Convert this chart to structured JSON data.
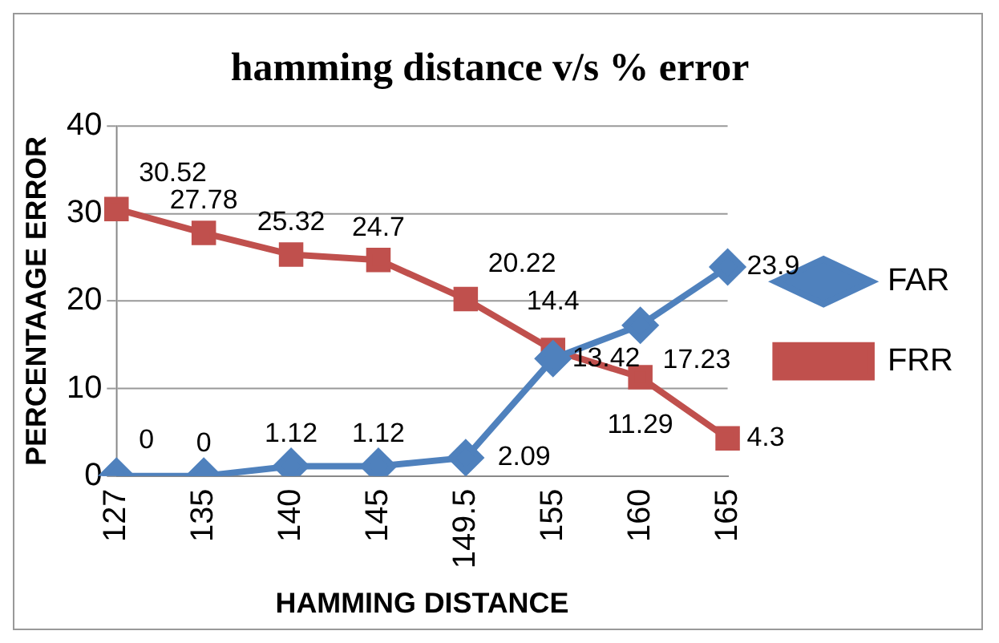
{
  "chart_data": {
    "type": "line",
    "title": "hamming distance v/s % error",
    "xlabel": "HAMMING DISTANCE",
    "ylabel": "PERCENTAAGE ERROR",
    "categories": [
      "127",
      "135",
      "140",
      "145",
      "149.5",
      "155",
      "160",
      "165"
    ],
    "series": [
      {
        "name": "FAR",
        "color": "#4f81bd",
        "marker": "diamond",
        "values": [
          0,
          0,
          1.12,
          1.12,
          2.09,
          13.42,
          17.23,
          23.9
        ]
      },
      {
        "name": "FRR",
        "color": "#c0504d",
        "marker": "square",
        "values": [
          30.52,
          27.78,
          25.32,
          24.7,
          20.22,
          14.4,
          11.29,
          4.3
        ]
      }
    ],
    "ylim": [
      0,
      40
    ],
    "yticks": [
      0,
      10,
      20,
      30,
      40
    ],
    "grid": "y",
    "legend": "right",
    "data_labels": true
  }
}
